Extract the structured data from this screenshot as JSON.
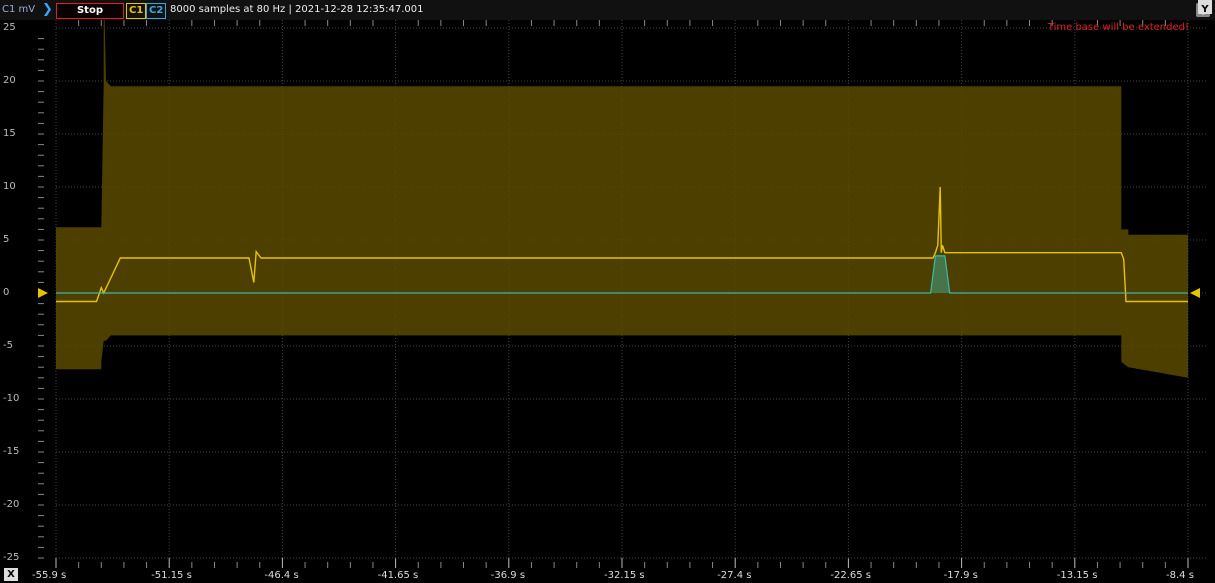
{
  "header": {
    "units_label": "C1 mV",
    "chevron_glyph": "❯",
    "stop_label": "Stop",
    "channel1_label": "C1",
    "channel2_label": "C2",
    "info": "8000 samples at 80 Hz | 2021-12-28 12:35:47.001",
    "warning": "Time base will be extended!",
    "y_button": "Y",
    "x_button": "X",
    "tool_icons": [
      "zoom-in-icon",
      "cursor-a-icon",
      "cursor-b-icon",
      "cursor-c-icon",
      "zoom-fit-icon",
      "refresh-icon"
    ]
  },
  "colors": {
    "channel1": "#e8c400",
    "channel1_envelope": "#5a4a00",
    "channel2": "#3fb8a8",
    "stop_border": "#e02020",
    "warning": "#e02020"
  },
  "chart_data": {
    "type": "line",
    "x_label": "",
    "y_label": "C1 mV",
    "xlim": [
      -55.9,
      -8.4
    ],
    "ylim": [
      -25,
      25
    ],
    "x_ticks": [
      "-55.9 s",
      "-51.15 s",
      "-46.4 s",
      "-41.65 s",
      "-36.9 s",
      "-32.15 s",
      "-27.4 s",
      "-22.65 s",
      "-17.9 s",
      "-13.15 s",
      "-8.4 s"
    ],
    "x_tick_values": [
      -55.9,
      -51.15,
      -46.4,
      -41.65,
      -36.9,
      -32.15,
      -27.4,
      -22.65,
      -17.9,
      -13.15,
      -8.4
    ],
    "y_ticks": [
      25,
      20,
      15,
      10,
      5,
      0,
      -5,
      -10,
      -15,
      -20,
      -25
    ],
    "grid": true,
    "series": [
      {
        "name": "C1",
        "x": [
          -55.9,
          -54.2,
          -54.0,
          -53.9,
          -53.2,
          -51.1,
          -49.0,
          -47.8,
          -47.6,
          -47.5,
          -47.3,
          -46.0,
          -20.0,
          -19.1,
          -19.0,
          -18.9,
          -18.8,
          -18.75,
          -18.7,
          -18.6,
          -18.5,
          -11.2,
          -11.1,
          -11.0,
          -8.4
        ],
        "y": [
          -0.8,
          -0.8,
          0.5,
          0.0,
          3.3,
          3.3,
          3.3,
          3.3,
          1.0,
          3.9,
          3.3,
          3.3,
          3.3,
          3.3,
          3.8,
          4.5,
          10.0,
          3.8,
          4.5,
          3.8,
          3.8,
          3.8,
          3.2,
          -0.8,
          -0.8
        ]
      },
      {
        "name": "C2",
        "x": [
          -55.9,
          -19.2,
          -19.0,
          -18.9,
          -18.6,
          -18.4,
          -8.4
        ],
        "y": [
          0,
          0,
          3.5,
          3.5,
          3.5,
          0,
          0
        ]
      }
    ],
    "envelope": {
      "series": "C1",
      "x": [
        -55.9,
        -54.0,
        -54.0,
        -53.9,
        -53.9,
        -53.8,
        -53.6,
        -11.2,
        -11.2,
        -10.9,
        -10.9,
        -8.4
      ],
      "upper": [
        6.2,
        6.2,
        6.0,
        20.0,
        30,
        20.0,
        19.5,
        19.5,
        6.0,
        6.0,
        5.5,
        5.5
      ],
      "lower": [
        -7.2,
        -7.2,
        -6.5,
        -4.5,
        -4.5,
        -4.5,
        -4.0,
        -4.0,
        -6.5,
        -7.0,
        -7.0,
        -8.0
      ]
    }
  }
}
